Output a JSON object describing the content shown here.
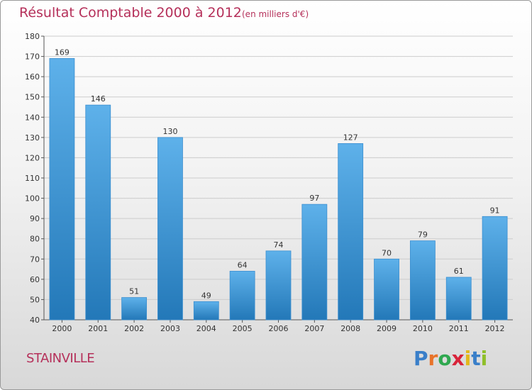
{
  "header": {
    "title": "Résultat Comptable 2000 à 2012",
    "subtitle": "(en milliers d'€)"
  },
  "footer": {
    "commune": "STAINVILLE",
    "logo": "Proxiti",
    "logo_colors": [
      "#3a7fc9",
      "#e8732a",
      "#2fa84f",
      "#d8243a",
      "#e3b81b",
      "#3a7fc9",
      "#8fbf2a"
    ]
  },
  "chart_data": {
    "type": "bar",
    "title": "Résultat Comptable 2000 à 2012",
    "subtitle": "(en milliers d'€)",
    "xlabel": "",
    "ylabel": "",
    "categories": [
      "2000",
      "2001",
      "2002",
      "2003",
      "2004",
      "2005",
      "2006",
      "2007",
      "2008",
      "2009",
      "2010",
      "2011",
      "2012"
    ],
    "values": [
      169,
      146,
      51,
      130,
      49,
      64,
      74,
      97,
      127,
      70,
      79,
      61,
      91
    ],
    "ylim": [
      40,
      180
    ],
    "yticks": [
      40,
      50,
      60,
      70,
      80,
      90,
      100,
      110,
      120,
      130,
      140,
      150,
      160,
      170,
      180
    ],
    "grid": true,
    "bar_color_top": "#5eb1ea",
    "bar_color_bottom": "#2378b8",
    "accent_color": "#b5305a"
  }
}
